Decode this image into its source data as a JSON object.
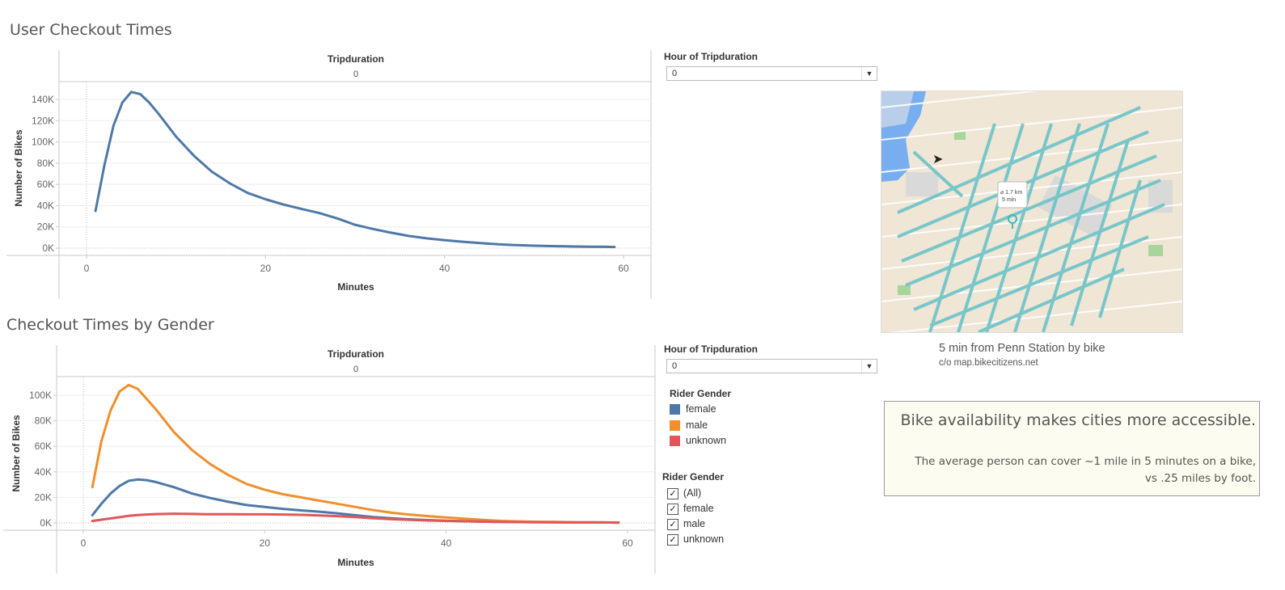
{
  "top_chart": {
    "title": "User Checkout Times",
    "header": "Tripduration",
    "header_value": "0",
    "xlabel": "Minutes",
    "ylabel": "Number of Bikes"
  },
  "bottom_chart": {
    "title": "Checkout Times by Gender",
    "header": "Tripduration",
    "header_value": "0",
    "xlabel": "Minutes",
    "ylabel": "Number of Bikes"
  },
  "filters": {
    "top_hour": {
      "label": "Hour of Tripduration",
      "value": "0"
    },
    "bottom_hour": {
      "label": "Hour of Tripduration",
      "value": "0"
    }
  },
  "legend": {
    "title": "Rider Gender",
    "items": [
      {
        "label": "female",
        "color": "#4e79a7"
      },
      {
        "label": "male",
        "color": "#f28e2b"
      },
      {
        "label": "unknown",
        "color": "#e15759"
      }
    ]
  },
  "gender_filter": {
    "title": "Rider Gender",
    "options": [
      {
        "label": "(All)",
        "checked": true
      },
      {
        "label": "female",
        "checked": true
      },
      {
        "label": "male",
        "checked": true
      },
      {
        "label": "unknown",
        "checked": true
      }
    ]
  },
  "map": {
    "caption": "5 min from Penn Station by bike",
    "credit": "c/o map.bikecitizens.net",
    "popup_distance": "⌀ 1.7 km",
    "popup_time": "5 min"
  },
  "info": {
    "headline": "Bike availability makes cities more accessible.",
    "body_line1": "The average person can cover ~1 mile in 5 minutes on a bike,",
    "body_line2": "vs .25 miles by foot."
  },
  "chart_data": [
    {
      "type": "line",
      "title": "User Checkout Times",
      "xlabel": "Minutes",
      "ylabel": "Number of Bikes",
      "xlim": [
        -3,
        63
      ],
      "ylim": [
        0,
        150000
      ],
      "xticks": [
        0,
        20,
        40,
        60
      ],
      "xtick_labels": [
        "0",
        "20",
        "40",
        "60"
      ],
      "yticks": [
        0,
        20000,
        40000,
        60000,
        80000,
        100000,
        120000,
        140000
      ],
      "ytick_labels": [
        "0K",
        "20K",
        "40K",
        "60K",
        "80K",
        "100K",
        "120K",
        "140K"
      ],
      "series": [
        {
          "color": "#4e79a7",
          "x": [
            1,
            2,
            3,
            4,
            5,
            6,
            7,
            8,
            10,
            12,
            14,
            16,
            18,
            20,
            22,
            24,
            26,
            28,
            30,
            32,
            34,
            36,
            38,
            40,
            42,
            44,
            46,
            48,
            50,
            52,
            54,
            56,
            58,
            59
          ],
          "y": [
            35000,
            78000,
            115000,
            137000,
            147000,
            145000,
            137000,
            127000,
            105000,
            87000,
            72000,
            61000,
            52000,
            46000,
            41000,
            37000,
            33000,
            28000,
            22000,
            18000,
            14500,
            11500,
            9200,
            7500,
            6000,
            4700,
            3600,
            2800,
            2300,
            1900,
            1600,
            1400,
            1200,
            1100
          ]
        }
      ]
    },
    {
      "type": "line",
      "title": "Checkout Times by Gender",
      "xlabel": "Minutes",
      "ylabel": "Number of Bikes",
      "xlim": [
        -3,
        63
      ],
      "ylim": [
        0,
        110000
      ],
      "xticks": [
        0,
        20,
        40,
        60
      ],
      "xtick_labels": [
        "0",
        "20",
        "40",
        "60"
      ],
      "yticks": [
        0,
        20000,
        40000,
        60000,
        80000,
        100000
      ],
      "ytick_labels": [
        "0K",
        "20K",
        "40K",
        "60K",
        "80K",
        "100K"
      ],
      "series": [
        {
          "name": "female",
          "color": "#4e79a7",
          "x": [
            1,
            2,
            3,
            4,
            5,
            6,
            7,
            8,
            10,
            12,
            14,
            16,
            18,
            20,
            22,
            24,
            26,
            28,
            30,
            32,
            34,
            36,
            38,
            40,
            42,
            44,
            46,
            48,
            50,
            52,
            54,
            56,
            58,
            59
          ],
          "y": [
            6000,
            15000,
            23000,
            29000,
            33000,
            34000,
            33500,
            32000,
            28000,
            23000,
            19500,
            16500,
            14000,
            12500,
            11000,
            9800,
            8800,
            7500,
            6000,
            4600,
            3600,
            2800,
            2200,
            1700,
            1300,
            1000,
            800,
            650,
            550,
            450,
            400,
            350,
            300,
            250
          ]
        },
        {
          "name": "male",
          "color": "#f28e2b",
          "x": [
            1,
            2,
            3,
            4,
            5,
            6,
            7,
            8,
            10,
            12,
            14,
            16,
            18,
            20,
            22,
            24,
            26,
            28,
            30,
            32,
            34,
            36,
            38,
            40,
            42,
            44,
            46,
            48,
            50,
            52,
            54,
            56,
            58,
            59
          ],
          "y": [
            28000,
            64000,
            88000,
            103000,
            108000,
            105000,
            97000,
            89000,
            71000,
            57000,
            46000,
            37500,
            30500,
            26000,
            22500,
            20000,
            17500,
            15000,
            12500,
            10000,
            8000,
            6500,
            5300,
            4300,
            3300,
            2400,
            1600,
            1200,
            900,
            750,
            600,
            500,
            400,
            350
          ]
        },
        {
          "name": "unknown",
          "color": "#e15759",
          "x": [
            1,
            2,
            3,
            4,
            5,
            6,
            7,
            8,
            10,
            12,
            14,
            16,
            18,
            20,
            22,
            24,
            26,
            28,
            30,
            32,
            34,
            36,
            38,
            40,
            42,
            44,
            46,
            48,
            50,
            52,
            54,
            56,
            58,
            59
          ],
          "y": [
            1500,
            2500,
            3500,
            4500,
            5500,
            6200,
            6600,
            6900,
            7200,
            7000,
            6800,
            6800,
            6700,
            6700,
            6600,
            6300,
            5900,
            5300,
            4600,
            3600,
            2900,
            2400,
            1900,
            1600,
            1300,
            1000,
            800,
            650,
            550,
            450,
            400,
            350,
            300,
            250
          ]
        }
      ]
    }
  ]
}
